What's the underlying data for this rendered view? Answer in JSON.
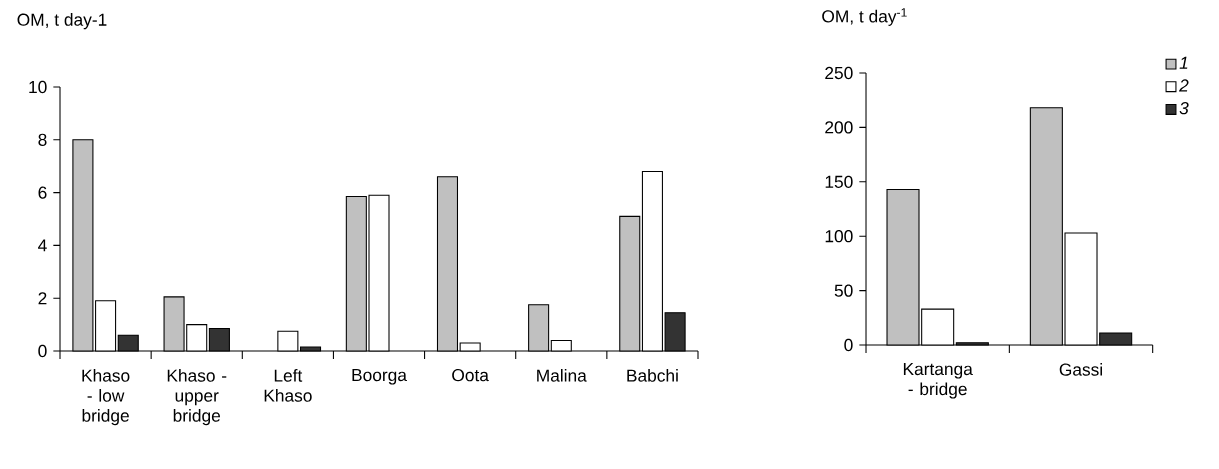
{
  "chart_data": [
    {
      "type": "bar",
      "ylabel": "OM, t day-1",
      "categories": [
        "Khaso - low bridge",
        "Khaso - upper bridge",
        "Left Khaso",
        "Boorga",
        "Oota",
        "Malina",
        "Babchi"
      ],
      "series": [
        {
          "color": "#c0c0c0",
          "values": [
            8.0,
            2.05,
            null,
            5.85,
            6.6,
            1.75,
            5.1
          ]
        },
        {
          "color": "#ffffff",
          "values": [
            1.9,
            1.0,
            0.75,
            5.9,
            0.3,
            0.4,
            6.8
          ]
        },
        {
          "color": "#333333",
          "values": [
            0.6,
            0.85,
            0.15,
            null,
            null,
            null,
            1.45
          ]
        }
      ],
      "ylim": [
        0,
        10
      ],
      "yticks": [
        0,
        2,
        4,
        6,
        8,
        10
      ],
      "legend": false
    },
    {
      "type": "bar",
      "ylabel": "OM, t day$^{-1}$",
      "categories": [
        "Kartanga - bridge",
        "Gassi"
      ],
      "series": [
        {
          "name": "1",
          "color": "#c0c0c0",
          "values": [
            143,
            218
          ]
        },
        {
          "name": "2",
          "color": "#ffffff",
          "values": [
            33,
            103
          ]
        },
        {
          "name": "3",
          "color": "#333333",
          "values": [
            2,
            11
          ]
        }
      ],
      "ylim": [
        0,
        250
      ],
      "yticks": [
        0,
        50,
        100,
        150,
        200,
        250
      ],
      "legend": "top right"
    }
  ]
}
